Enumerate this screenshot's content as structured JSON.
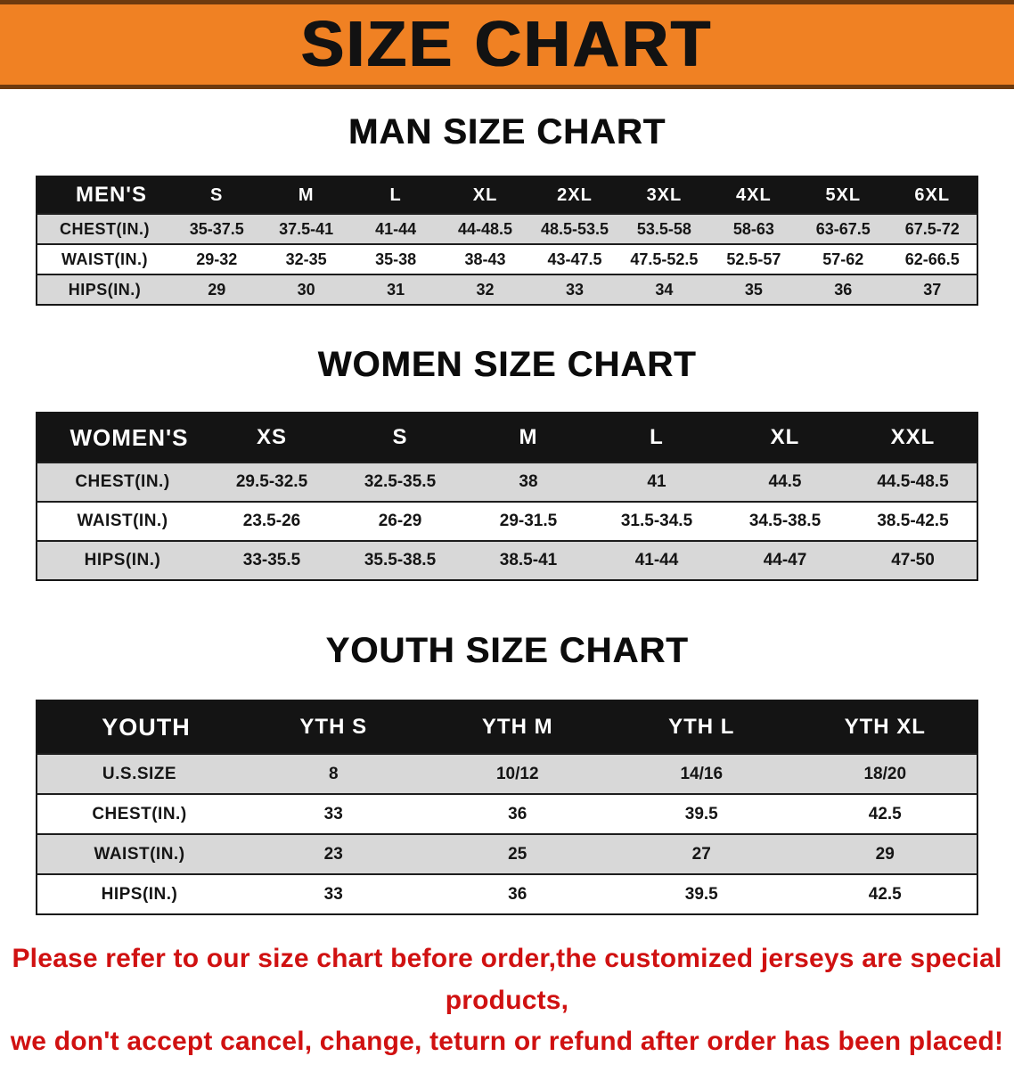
{
  "banner": {
    "title": "SIZE CHART"
  },
  "colors": {
    "banner-orange": "#f08123",
    "banner-border": "#6e3a0e",
    "bar-black": "#141414",
    "row-shade": "#d8d8d8",
    "note-red": "#d01111",
    "text-black": "#111111"
  },
  "sections": [
    {
      "id": "men",
      "heading": "MAN SIZE CHART",
      "table": {
        "corner": "MEN'S",
        "sizes": [
          "S",
          "M",
          "L",
          "XL",
          "2XL",
          "3XL",
          "4XL",
          "5XL",
          "6XL"
        ],
        "rows": [
          {
            "label": "CHEST(IN.)",
            "values": [
              "35-37.5",
              "37.5-41",
              "41-44",
              "44-48.5",
              "48.5-53.5",
              "53.5-58",
              "58-63",
              "63-67.5",
              "67.5-72"
            ]
          },
          {
            "label": "WAIST(IN.)",
            "values": [
              "29-32",
              "32-35",
              "35-38",
              "38-43",
              "43-47.5",
              "47.5-52.5",
              "52.5-57",
              "57-62",
              "62-66.5"
            ]
          },
          {
            "label": "HIPS(IN.)",
            "values": [
              "29",
              "30",
              "31",
              "32",
              "33",
              "34",
              "35",
              "36",
              "37"
            ]
          }
        ]
      }
    },
    {
      "id": "women",
      "heading": "WOMEN SIZE CHART",
      "table": {
        "corner": "WOMEN'S",
        "sizes": [
          "XS",
          "S",
          "M",
          "L",
          "XL",
          "XXL"
        ],
        "rows": [
          {
            "label": "CHEST(IN.)",
            "values": [
              "29.5-32.5",
              "32.5-35.5",
              "38",
              "41",
              "44.5",
              "44.5-48.5"
            ]
          },
          {
            "label": "WAIST(IN.)",
            "values": [
              "23.5-26",
              "26-29",
              "29-31.5",
              "31.5-34.5",
              "34.5-38.5",
              "38.5-42.5"
            ]
          },
          {
            "label": "HIPS(IN.)",
            "values": [
              "33-35.5",
              "35.5-38.5",
              "38.5-41",
              "41-44",
              "44-47",
              "47-50"
            ]
          }
        ]
      }
    },
    {
      "id": "youth",
      "heading": "YOUTH SIZE CHART",
      "table": {
        "corner": "YOUTH",
        "sizes": [
          "YTH S",
          "YTH M",
          "YTH L",
          "YTH XL"
        ],
        "rows": [
          {
            "label": "U.S.SIZE",
            "values": [
              "8",
              "10/12",
              "14/16",
              "18/20"
            ]
          },
          {
            "label": "CHEST(IN.)",
            "values": [
              "33",
              "36",
              "39.5",
              "42.5"
            ]
          },
          {
            "label": "WAIST(IN.)",
            "values": [
              "23",
              "25",
              "27",
              "29"
            ]
          },
          {
            "label": "HIPS(IN.)",
            "values": [
              "33",
              "36",
              "39.5",
              "42.5"
            ]
          }
        ]
      }
    }
  ],
  "footer": {
    "line1": "Please refer to our size chart before order,the customized jerseys are special products,",
    "line2": "we don't accept cancel, change, teturn or refund after order has been placed!"
  }
}
